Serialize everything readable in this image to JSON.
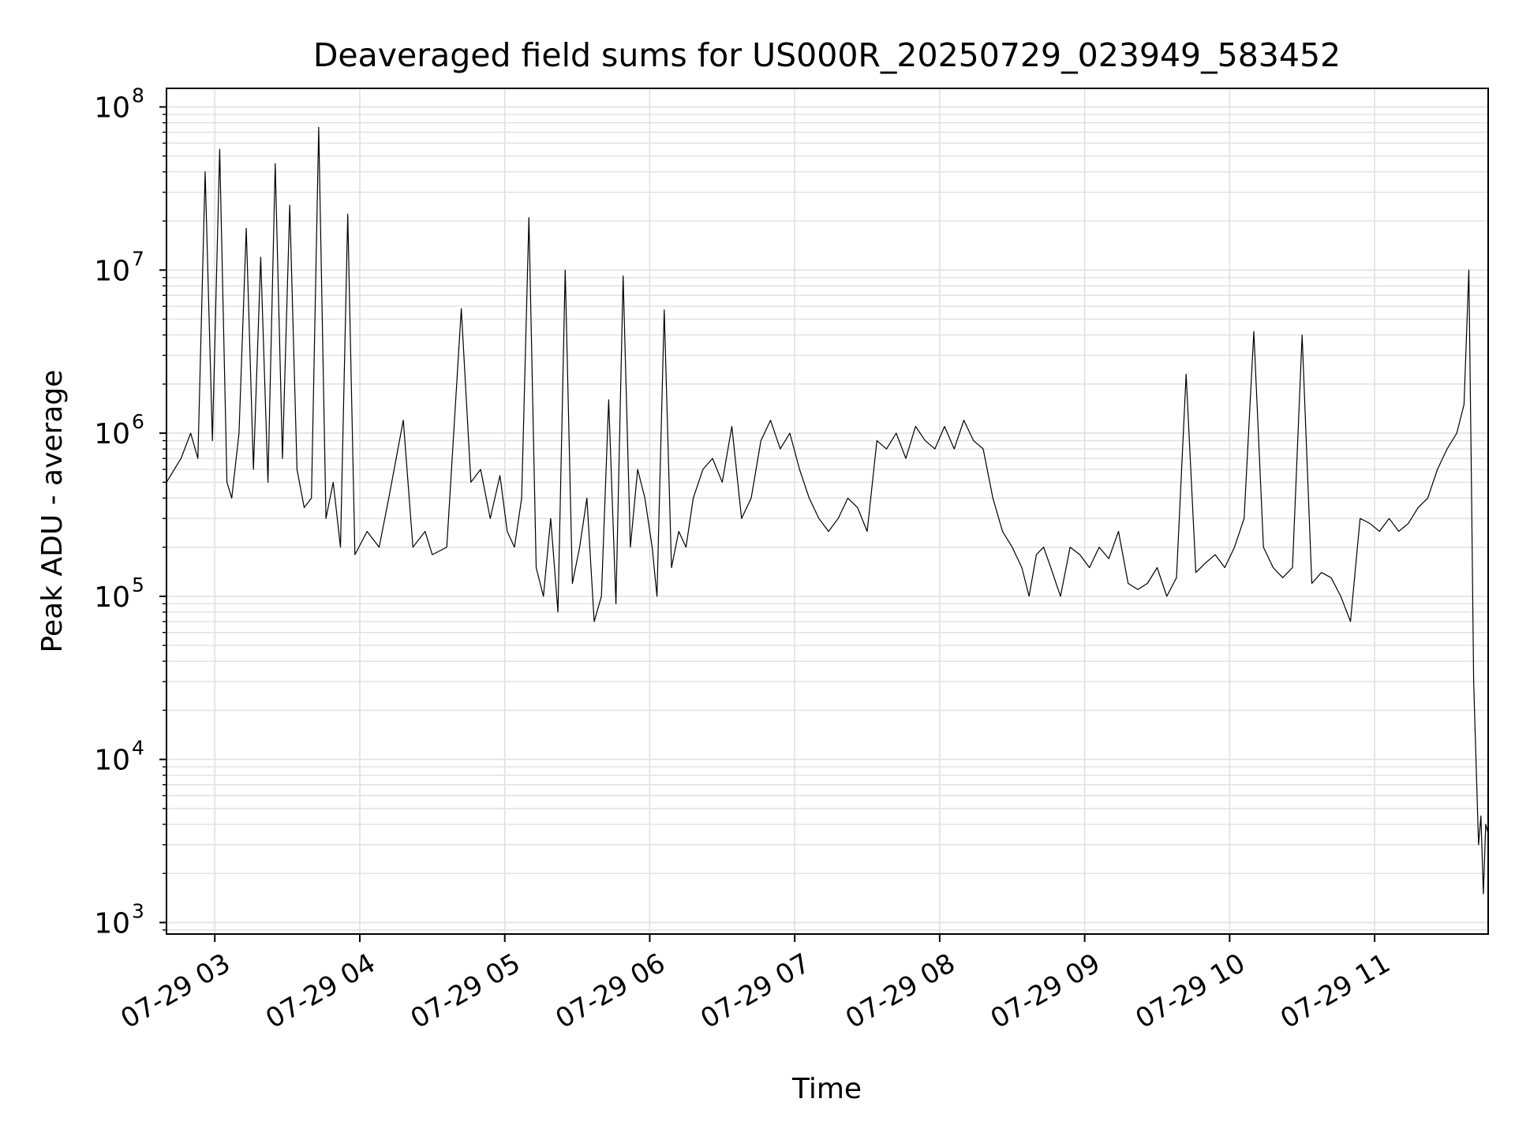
{
  "chart_data": {
    "type": "line",
    "title": "Deaveraged field sums for US000R_20250729_023949_583452",
    "xlabel": "Time",
    "ylabel": "Peak ADU - average",
    "yscale": "log",
    "xlim": [
      "2025-07-29 02:40",
      "2025-07-29 11:47"
    ],
    "ylim": [
      850,
      130000000
    ],
    "x_tick_labels": [
      "07-29 03",
      "07-29 04",
      "07-29 05",
      "07-29 06",
      "07-29 07",
      "07-29 08",
      "07-29 09",
      "07-29 10",
      "07-29 11"
    ],
    "y_tick_labels": [
      {
        "base": "10",
        "exp": "3"
      },
      {
        "base": "10",
        "exp": "4"
      },
      {
        "base": "10",
        "exp": "5"
      },
      {
        "base": "10",
        "exp": "6"
      },
      {
        "base": "10",
        "exp": "7"
      },
      {
        "base": "10",
        "exp": "8"
      }
    ],
    "grid": true,
    "line_color": "#000000",
    "grid_color": "#e0e0e0",
    "series": [
      {
        "x": [
          "02:40",
          "02:46",
          "02:50",
          "02:53",
          "02:56",
          "02:59",
          "03:02",
          "03:05",
          "03:07",
          "03:10",
          "03:13",
          "03:16",
          "03:19",
          "03:22",
          "03:25",
          "03:28",
          "03:31",
          "03:34",
          "03:37",
          "03:40",
          "03:43",
          "03:46",
          "03:49",
          "03:52",
          "03:55",
          "03:58",
          "04:03",
          "04:08",
          "04:12",
          "04:18",
          "04:22",
          "04:27",
          "04:30",
          "04:36",
          "04:42",
          "04:46",
          "04:50",
          "04:54",
          "04:58",
          "05:01",
          "05:04",
          "05:07",
          "05:10",
          "05:13",
          "05:16",
          "05:19",
          "05:22",
          "05:25",
          "05:28",
          "05:31",
          "05:34",
          "05:37",
          "05:40",
          "05:43",
          "05:46",
          "05:49",
          "05:52",
          "05:55",
          "05:58",
          "06:01",
          "06:03",
          "06:06",
          "06:09",
          "06:12",
          "06:15",
          "06:18",
          "06:22",
          "06:26",
          "06:30",
          "06:34",
          "06:38",
          "06:42",
          "06:46",
          "06:50",
          "06:54",
          "06:58",
          "07:02",
          "07:06",
          "07:10",
          "07:14",
          "07:18",
          "07:22",
          "07:26",
          "07:30",
          "07:34",
          "07:38",
          "07:42",
          "07:46",
          "07:50",
          "07:54",
          "07:58",
          "08:02",
          "08:06",
          "08:10",
          "08:14",
          "08:18",
          "08:22",
          "08:26",
          "08:30",
          "08:34",
          "08:37",
          "08:40",
          "08:43",
          "08:46",
          "08:50",
          "08:54",
          "08:58",
          "09:02",
          "09:06",
          "09:10",
          "09:14",
          "09:18",
          "09:22",
          "09:26",
          "09:30",
          "09:34",
          "09:38",
          "09:42",
          "09:46",
          "09:50",
          "09:54",
          "09:58",
          "10:02",
          "10:06",
          "10:10",
          "10:14",
          "10:18",
          "10:22",
          "10:26",
          "10:30",
          "10:34",
          "10:38",
          "10:42",
          "10:46",
          "10:50",
          "10:54",
          "10:58",
          "11:02",
          "11:06",
          "11:10",
          "11:14",
          "11:18",
          "11:22",
          "11:26",
          "11:30",
          "11:34",
          "11:37",
          "11:39",
          "11:40",
          "11:41",
          "11:43",
          "11:44",
          "11:45",
          "11:46",
          "11:47"
        ],
        "y": [
          500000,
          700000,
          1000000,
          700000,
          40000000,
          900000,
          55000000,
          500000,
          400000,
          1000000,
          18000000,
          600000,
          12000000,
          500000,
          45000000,
          700000,
          25000000,
          600000,
          350000,
          400000,
          75000000,
          300000,
          500000,
          200000,
          22000000,
          180000,
          250000,
          200000,
          400000,
          1200000,
          200000,
          250000,
          180000,
          200000,
          5800000,
          500000,
          600000,
          300000,
          550000,
          250000,
          200000,
          400000,
          21000000,
          150000,
          100000,
          300000,
          80000,
          10000000,
          120000,
          200000,
          400000,
          70000,
          100000,
          1600000,
          90000,
          9200000,
          200000,
          600000,
          400000,
          200000,
          100000,
          5700000,
          150000,
          250000,
          200000,
          400000,
          600000,
          700000,
          500000,
          1100000,
          300000,
          400000,
          900000,
          1200000,
          800000,
          1000000,
          600000,
          400000,
          300000,
          250000,
          300000,
          400000,
          350000,
          250000,
          900000,
          800000,
          1000000,
          700000,
          1100000,
          900000,
          800000,
          1100000,
          800000,
          1200000,
          900000,
          800000,
          400000,
          250000,
          200000,
          150000,
          100000,
          180000,
          200000,
          150000,
          100000,
          200000,
          180000,
          150000,
          200000,
          170000,
          250000,
          120000,
          110000,
          120000,
          150000,
          100000,
          130000,
          2300000,
          140000,
          160000,
          180000,
          150000,
          200000,
          300000,
          4200000,
          200000,
          150000,
          130000,
          150000,
          4000000,
          120000,
          140000,
          130000,
          100000,
          70000,
          300000,
          280000,
          250000,
          300000,
          250000,
          280000,
          350000,
          400000,
          600000,
          800000,
          1000000,
          1500000,
          10000000,
          600000,
          30000,
          3000,
          4500,
          1500,
          4000,
          3500
        ]
      }
    ]
  }
}
